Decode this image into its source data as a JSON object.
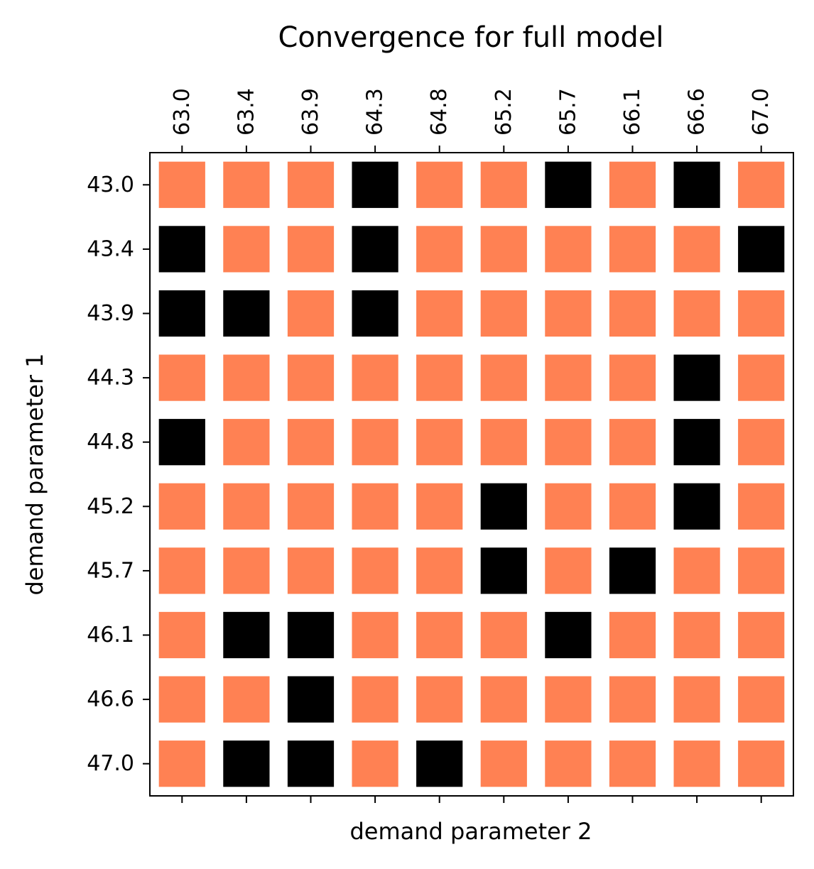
{
  "chart_data": {
    "type": "heatmap",
    "title": "Convergence for full model",
    "xlabel": "demand parameter 2",
    "ylabel": "demand parameter 1",
    "x_tick_position": "top",
    "x_categories": [
      "63.0",
      "63.4",
      "63.9",
      "64.3",
      "64.8",
      "65.2",
      "65.7",
      "66.1",
      "66.6",
      "67.0"
    ],
    "y_categories": [
      "43.0",
      "43.4",
      "43.9",
      "44.3",
      "44.8",
      "45.2",
      "45.7",
      "46.1",
      "46.6",
      "47.0"
    ],
    "values": [
      [
        0,
        0,
        0,
        1,
        0,
        0,
        1,
        0,
        1,
        0
      ],
      [
        1,
        0,
        0,
        1,
        0,
        0,
        0,
        0,
        0,
        1
      ],
      [
        1,
        1,
        0,
        1,
        0,
        0,
        0,
        0,
        0,
        0
      ],
      [
        0,
        0,
        0,
        0,
        0,
        0,
        0,
        0,
        1,
        0
      ],
      [
        1,
        0,
        0,
        0,
        0,
        0,
        0,
        0,
        1,
        0
      ],
      [
        0,
        0,
        0,
        0,
        0,
        1,
        0,
        0,
        1,
        0
      ],
      [
        0,
        0,
        0,
        0,
        0,
        1,
        0,
        1,
        0,
        0
      ],
      [
        0,
        1,
        1,
        0,
        0,
        0,
        1,
        0,
        0,
        0
      ],
      [
        0,
        0,
        1,
        0,
        0,
        0,
        0,
        0,
        0,
        0
      ],
      [
        0,
        1,
        1,
        0,
        1,
        0,
        0,
        0,
        0,
        0
      ]
    ],
    "colors": {
      "0": "#ff8153",
      "1": "#000000"
    },
    "grid": false,
    "legend": "none"
  }
}
